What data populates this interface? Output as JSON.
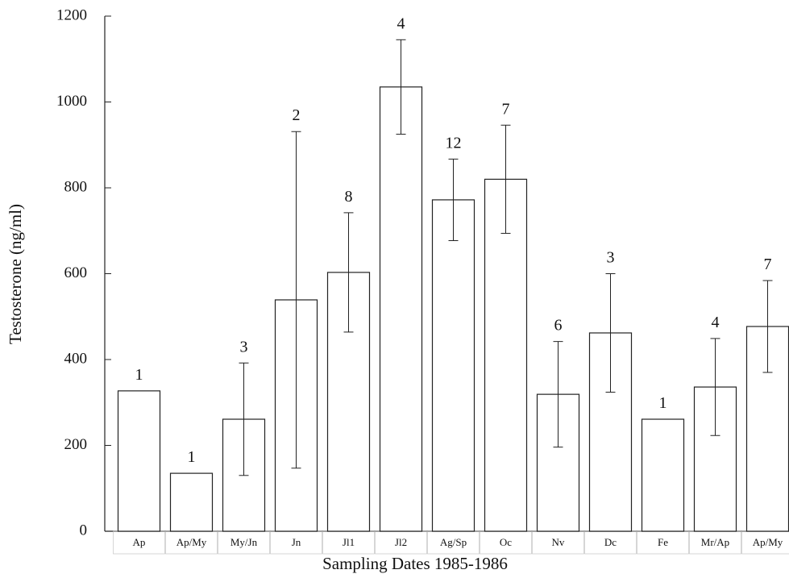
{
  "chart_data": {
    "type": "bar",
    "x_label": "Sampling Dates 1985-1986",
    "y_label": "Testosterone (ng/ml)",
    "categories": [
      "Ap",
      "Ap/My",
      "My/Jn",
      "Jn",
      "Jl1",
      "Jl2",
      "Ag/Sp",
      "Oc",
      "Nv",
      "Dc",
      "Fe",
      "Mr/Ap",
      "Ap/My"
    ],
    "values": [
      327,
      135,
      261,
      539,
      603,
      1035,
      772,
      820,
      319,
      462,
      261,
      336,
      477
    ],
    "errors": [
      null,
      null,
      131,
      392,
      139,
      110,
      95,
      126,
      123,
      138,
      null,
      113,
      107
    ],
    "sample_sizes": [
      1,
      1,
      3,
      2,
      8,
      4,
      12,
      7,
      6,
      3,
      1,
      4,
      7
    ],
    "color": "#ffffff",
    "ylim": [
      0,
      1200
    ],
    "yticks": [
      0,
      200,
      400,
      600,
      800,
      1000,
      1200
    ]
  }
}
